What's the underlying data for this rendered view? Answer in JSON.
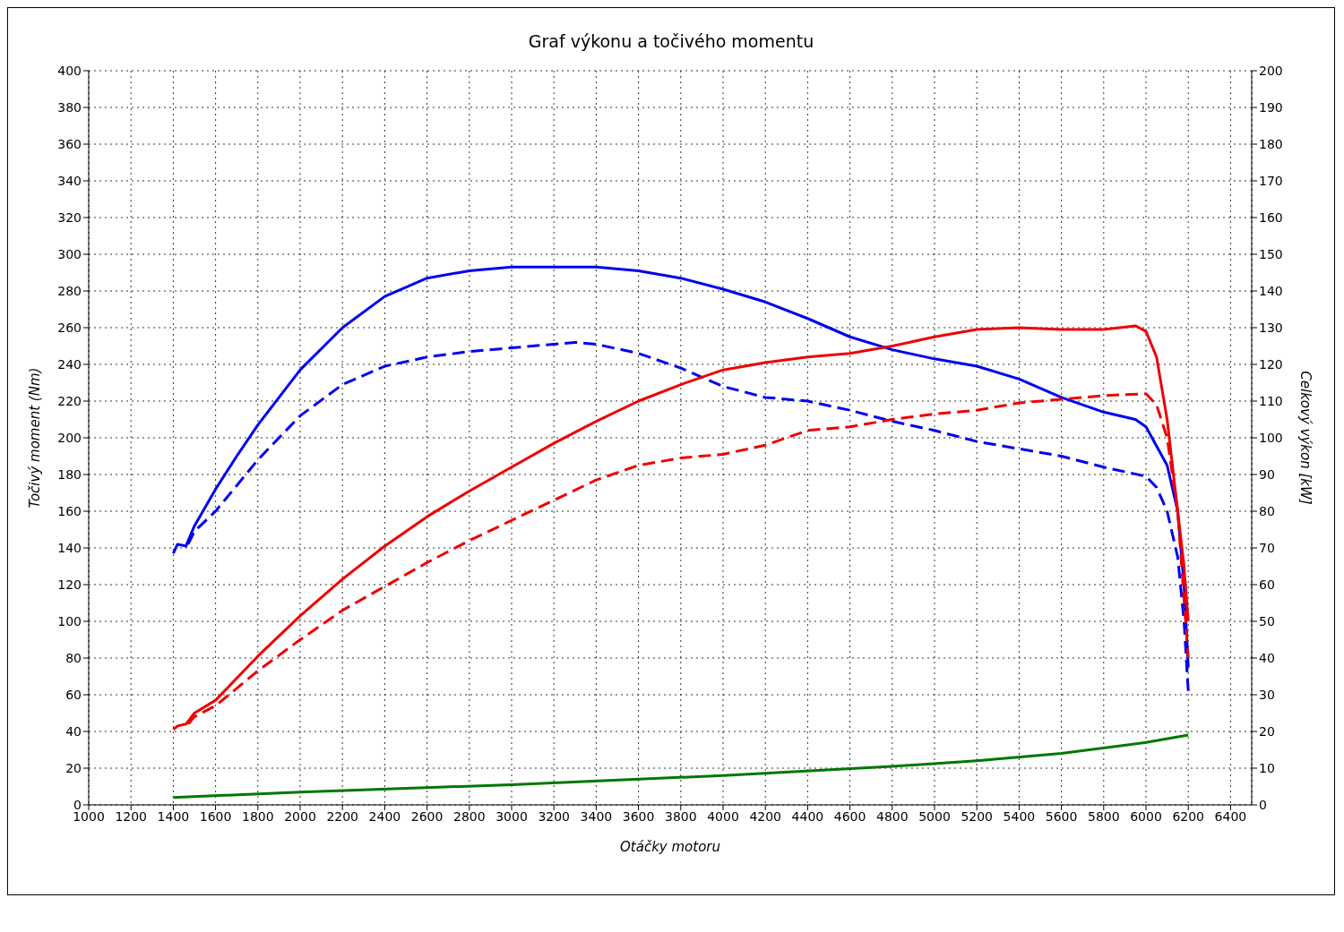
{
  "chart_data": {
    "type": "line",
    "title": "Graf výkonu a točivého momentu",
    "xlabel": "Otáčky motoru",
    "ylabel": "Točivý moment (Nm)",
    "y2label": "Celkový výkon [kW]",
    "xlim": [
      1000,
      6500
    ],
    "xticks": [
      1000,
      1200,
      1400,
      1600,
      1800,
      2000,
      2200,
      2400,
      2600,
      2800,
      3000,
      3200,
      3400,
      3600,
      3800,
      4000,
      4200,
      4400,
      4600,
      4800,
      5000,
      5200,
      5400,
      5600,
      5800,
      6000,
      6200,
      6400
    ],
    "ylim": [
      0,
      400
    ],
    "yticks": [
      0,
      20,
      40,
      60,
      80,
      100,
      120,
      140,
      160,
      180,
      200,
      220,
      240,
      260,
      280,
      300,
      320,
      340,
      360,
      380,
      400
    ],
    "y2lim": [
      0,
      200
    ],
    "y2ticks": [
      0,
      10,
      20,
      30,
      40,
      50,
      60,
      70,
      80,
      90,
      100,
      110,
      120,
      130,
      140,
      150,
      160,
      170,
      180,
      190,
      200
    ],
    "grid": true,
    "marker": "none",
    "series": [
      {
        "color": "#0000ee",
        "line_style": "solid",
        "x": [
          1400,
          1420,
          1460,
          1500,
          1600,
          1700,
          1800,
          1900,
          2000,
          2200,
          2400,
          2600,
          2800,
          3000,
          3200,
          3400,
          3600,
          3800,
          4000,
          4200,
          4400,
          4600,
          4800,
          5000,
          5200,
          5400,
          5600,
          5800,
          5950,
          6000,
          6100,
          6150,
          6180,
          6200
        ],
        "values": [
          137,
          142,
          141,
          152,
          172,
          190,
          207,
          222,
          237,
          260,
          277,
          287,
          291,
          293,
          293,
          293,
          291,
          287,
          281,
          274,
          265,
          255,
          248,
          243,
          239,
          232,
          222,
          214,
          210,
          206,
          185,
          160,
          120,
          75
        ]
      },
      {
        "color": "#0000ee",
        "line_style": "dashed",
        "x": [
          1470,
          1500,
          1600,
          1800,
          2000,
          2200,
          2400,
          2600,
          2800,
          3000,
          3200,
          3300,
          3400,
          3600,
          3800,
          4000,
          4200,
          4400,
          4600,
          4800,
          5000,
          5200,
          5400,
          5600,
          5800,
          6000,
          6050,
          6100,
          6150,
          6180,
          6200
        ],
        "values": [
          142,
          149,
          160,
          188,
          212,
          229,
          239,
          244,
          247,
          249,
          251,
          252,
          251,
          246,
          238,
          228,
          222,
          220,
          215,
          209,
          204,
          198,
          194,
          190,
          184,
          179,
          173,
          160,
          135,
          100,
          62
        ]
      },
      {
        "color": "#ee0000",
        "line_style": "solid",
        "axis": "y2",
        "x": [
          1400,
          1420,
          1460,
          1500,
          1600,
          1800,
          2000,
          2200,
          2400,
          2600,
          2800,
          3000,
          3200,
          3400,
          3600,
          3800,
          4000,
          4200,
          4400,
          4600,
          4800,
          5000,
          5200,
          5400,
          5600,
          5800,
          5950,
          6000,
          6050,
          6100,
          6150,
          6180,
          6200
        ],
        "values": [
          20.5,
          21.5,
          22,
          25,
          28.5,
          40.5,
          51.5,
          61.5,
          70.5,
          78.5,
          85.5,
          92,
          98.5,
          104.5,
          110,
          114.5,
          118.5,
          120.5,
          122,
          123,
          125,
          127.5,
          129.5,
          130,
          129.5,
          129.5,
          130.5,
          129,
          122,
          105,
          80,
          65,
          50
        ]
      },
      {
        "color": "#ee0000",
        "line_style": "dashed",
        "axis": "y2",
        "x": [
          1470,
          1500,
          1600,
          1800,
          2000,
          2200,
          2400,
          2600,
          2800,
          3000,
          3200,
          3400,
          3600,
          3800,
          4000,
          4200,
          4400,
          4600,
          4800,
          5000,
          5200,
          5400,
          5600,
          5800,
          6000,
          6050,
          6100,
          6150,
          6200
        ],
        "values": [
          22,
          24,
          27,
          36.5,
          45,
          53,
          59.5,
          66,
          72,
          77.5,
          83,
          88.5,
          92.5,
          94.5,
          95.5,
          98,
          102,
          103,
          105,
          106.5,
          107.5,
          109.5,
          110.5,
          111.5,
          112,
          109,
          100,
          80,
          40
        ]
      },
      {
        "color": "#007700",
        "line_style": "solid",
        "axis": "y2",
        "x": [
          1400,
          2000,
          3000,
          4000,
          4800,
          5200,
          5600,
          6000,
          6200
        ],
        "values": [
          2,
          3.5,
          5.5,
          8,
          10.5,
          12,
          14,
          17,
          19
        ]
      }
    ]
  }
}
